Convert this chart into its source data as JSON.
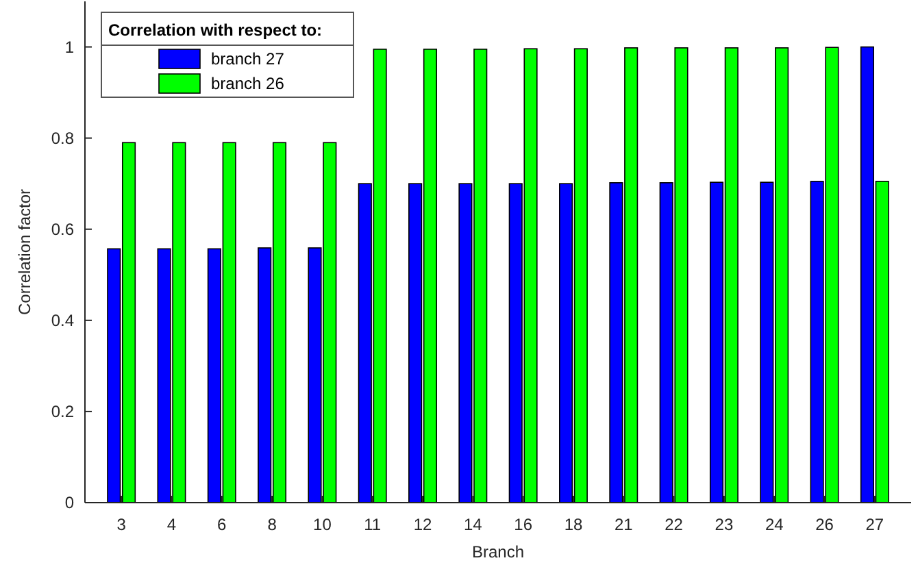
{
  "chart_data": {
    "type": "bar",
    "xlabel": "Branch",
    "ylabel": "Correlation factor",
    "legend_title": "Correlation with respect to:",
    "legend": "top left",
    "categories": [
      "3",
      "4",
      "6",
      "8",
      "10",
      "11",
      "12",
      "14",
      "16",
      "18",
      "21",
      "22",
      "23",
      "24",
      "26",
      "27"
    ],
    "series": [
      {
        "name": "branch 27",
        "color": "#0000ff",
        "values": [
          0.557,
          0.557,
          0.557,
          0.559,
          0.559,
          0.7,
          0.7,
          0.7,
          0.7,
          0.7,
          0.702,
          0.702,
          0.703,
          0.703,
          0.705,
          1
        ]
      },
      {
        "name": "branch 26",
        "color": "#00ff00",
        "values": [
          0.79,
          0.79,
          0.79,
          0.79,
          0.79,
          0.995,
          0.995,
          0.995,
          0.996,
          0.996,
          0.998,
          0.998,
          0.998,
          0.998,
          0.999,
          0.705
        ]
      }
    ],
    "ylim": [
      0,
      1.1
    ],
    "yticks": [
      0,
      0.2,
      0.4,
      0.6,
      0.8,
      1
    ],
    "grid": false
  }
}
